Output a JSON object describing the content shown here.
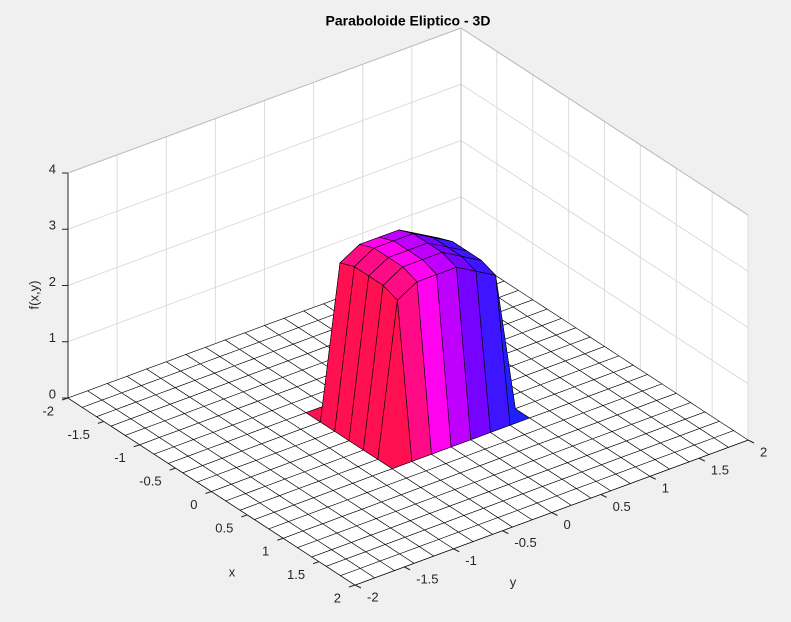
{
  "chart_data": {
    "type": "surface",
    "title": "Paraboloide Eliptico - 3D",
    "xlabel": "x",
    "ylabel": "y",
    "zlabel": "f(x,y)",
    "xlim": [
      -2,
      2
    ],
    "ylim": [
      -2,
      2
    ],
    "zlim": [
      0,
      4
    ],
    "xticks": [
      -2,
      -1.5,
      -1,
      -0.5,
      0,
      0.5,
      1,
      1.5,
      2
    ],
    "yticks": [
      -2,
      -1.5,
      -1,
      -0.5,
      0,
      0.5,
      1,
      1.5,
      2
    ],
    "zticks": [
      0,
      1,
      2,
      3,
      4
    ],
    "grid": true,
    "colormap": [
      "#ff1050",
      "#ff00ff",
      "#8000ff",
      "#2020ff"
    ],
    "x": [
      -2,
      -1.8,
      -1.6,
      -1.4,
      -1.2,
      -1,
      -0.8,
      -0.6,
      -0.4,
      -0.2,
      0,
      0.2,
      0.4,
      0.6,
      0.8,
      1,
      1.2,
      1.4,
      1.6,
      1.8,
      2
    ],
    "y": [
      -2,
      -1.8,
      -1.6,
      -1.4,
      -1.2,
      -1,
      -0.8,
      -0.6,
      -0.4,
      -0.2,
      0,
      0.2,
      0.4,
      0.6,
      0.8,
      1,
      1.2,
      1.4,
      1.6,
      1.8,
      2
    ],
    "z": [
      [
        0,
        0,
        0,
        0,
        0,
        0,
        0,
        0,
        0,
        0,
        0,
        0,
        0,
        0,
        0,
        0,
        0,
        0,
        0,
        0,
        0
      ],
      [
        0,
        0,
        0,
        0,
        0,
        0,
        0,
        0,
        0,
        0,
        0,
        0,
        0,
        0,
        0,
        0,
        0,
        0,
        0,
        0,
        0
      ],
      [
        0,
        0,
        0,
        0,
        0,
        0,
        0,
        0,
        0,
        0,
        0,
        0,
        0,
        0,
        0,
        0,
        0,
        0,
        0,
        0,
        0
      ],
      [
        0,
        0,
        0,
        0,
        0,
        0,
        0,
        0,
        0,
        0,
        0,
        0,
        0,
        0,
        0,
        0,
        0,
        0,
        0,
        0,
        0
      ],
      [
        0,
        0,
        0,
        0,
        0,
        0,
        0,
        0,
        0,
        0,
        0,
        0,
        0,
        0,
        0,
        0,
        0,
        0,
        0,
        0,
        0
      ],
      [
        0,
        0,
        0,
        0,
        0,
        0,
        0,
        0,
        0,
        0,
        0,
        0,
        0,
        0,
        0,
        0,
        0,
        0,
        0,
        0,
        0
      ],
      [
        0,
        0,
        0,
        0,
        0,
        0,
        0,
        0,
        0,
        0,
        0,
        0,
        0,
        0,
        0,
        0,
        0,
        0,
        0,
        0,
        0
      ],
      [
        0,
        0,
        0,
        0,
        0,
        0,
        0,
        0,
        0,
        0,
        0,
        0,
        0,
        0,
        0,
        0,
        0,
        0,
        0,
        0,
        0
      ],
      [
        0,
        0,
        0,
        0,
        0,
        0,
        0,
        0,
        2.7,
        2.9,
        2.9,
        2.9,
        2.7,
        2.5,
        0,
        0,
        0,
        0,
        0,
        0,
        0
      ],
      [
        0,
        0,
        0,
        0,
        0,
        0,
        0,
        0,
        2.8,
        3,
        3,
        3,
        2.8,
        2.6,
        0,
        0,
        0,
        0,
        0,
        0,
        0
      ],
      [
        0,
        0,
        0,
        0,
        0,
        0,
        0,
        0,
        2.8,
        3,
        3,
        3,
        2.8,
        2.6,
        0,
        0,
        0,
        0,
        0,
        0,
        0
      ],
      [
        0,
        0,
        0,
        0,
        0,
        0,
        0,
        0,
        2.8,
        3,
        3,
        3,
        2.8,
        2.6,
        0,
        0,
        0,
        0,
        0,
        0,
        0
      ],
      [
        0,
        0,
        0,
        0,
        0,
        0,
        0,
        0,
        2.7,
        2.9,
        2.9,
        2.9,
        2.7,
        2.5,
        0,
        0,
        0,
        0,
        0,
        0,
        0
      ],
      [
        0,
        0,
        0,
        0,
        0,
        0,
        0,
        0,
        0,
        0,
        0,
        0,
        0,
        0,
        0,
        0,
        0,
        0,
        0,
        0,
        0
      ],
      [
        0,
        0,
        0,
        0,
        0,
        0,
        0,
        0,
        0,
        0,
        0,
        0,
        0,
        0,
        0,
        0,
        0,
        0,
        0,
        0,
        0
      ],
      [
        0,
        0,
        0,
        0,
        0,
        0,
        0,
        0,
        0,
        0,
        0,
        0,
        0,
        0,
        0,
        0,
        0,
        0,
        0,
        0,
        0
      ],
      [
        0,
        0,
        0,
        0,
        0,
        0,
        0,
        0,
        0,
        0,
        0,
        0,
        0,
        0,
        0,
        0,
        0,
        0,
        0,
        0,
        0
      ],
      [
        0,
        0,
        0,
        0,
        0,
        0,
        0,
        0,
        0,
        0,
        0,
        0,
        0,
        0,
        0,
        0,
        0,
        0,
        0,
        0,
        0
      ],
      [
        0,
        0,
        0,
        0,
        0,
        0,
        0,
        0,
        0,
        0,
        0,
        0,
        0,
        0,
        0,
        0,
        0,
        0,
        0,
        0,
        0
      ],
      [
        0,
        0,
        0,
        0,
        0,
        0,
        0,
        0,
        0,
        0,
        0,
        0,
        0,
        0,
        0,
        0,
        0,
        0,
        0,
        0,
        0
      ],
      [
        0,
        0,
        0,
        0,
        0,
        0,
        0,
        0,
        0,
        0,
        0,
        0,
        0,
        0,
        0,
        0,
        0,
        0,
        0,
        0,
        0
      ]
    ]
  }
}
